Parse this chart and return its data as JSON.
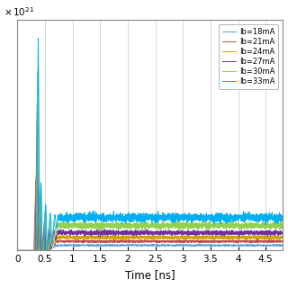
{
  "title": "",
  "xlabel": "Time [ns]",
  "xlim": [
    0,
    4.8
  ],
  "ylim": [
    0,
    3.5
  ],
  "xticks": [
    0,
    0.5,
    1.0,
    1.5,
    2.0,
    2.5,
    3.0,
    3.5,
    4.0,
    4.5
  ],
  "yticks": [],
  "legend_labels": [
    "Ib=18mA",
    "Ib=21mA",
    "Ib=24mA",
    "Ib=27mA",
    "Ib=30mA",
    "Ib=33mA"
  ],
  "colors": [
    "#5B9BD5",
    "#C0504D",
    "#CCA300",
    "#7030A0",
    "#92D050",
    "#00B0F0"
  ],
  "steady_levels": [
    0.08,
    0.14,
    0.2,
    0.27,
    0.38,
    0.5
  ],
  "peak_times": [
    0.33,
    0.34,
    0.35,
    0.36,
    0.37,
    0.38
  ],
  "peak_heights": [
    0.85,
    1.1,
    1.55,
    2.25,
    2.75,
    3.3
  ],
  "background_color": "#ffffff",
  "grid_color": "#c8c8c8"
}
